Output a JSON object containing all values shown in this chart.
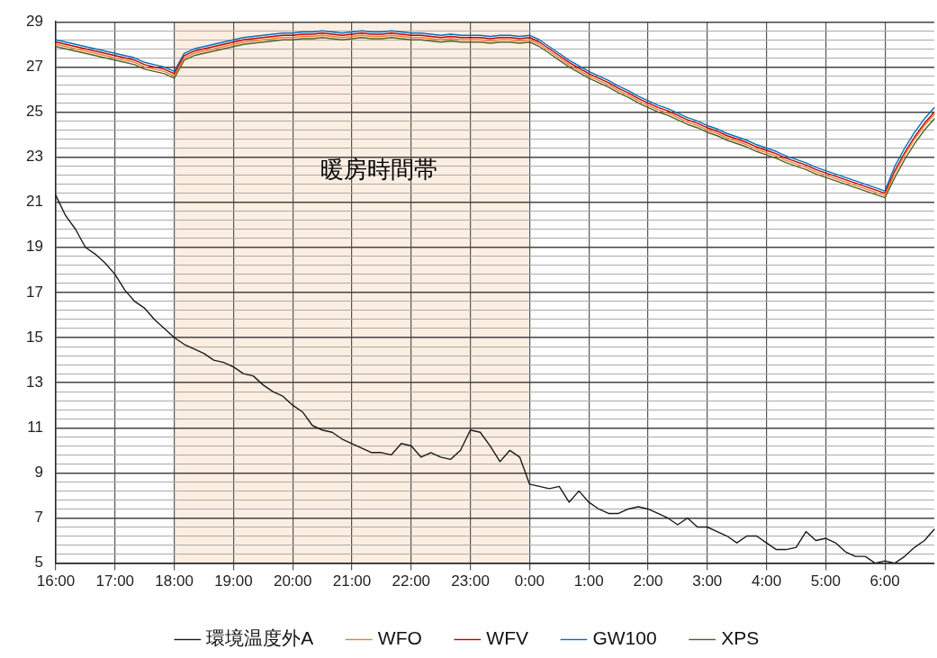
{
  "chart_data": {
    "type": "line",
    "categories": [
      "16:00",
      null,
      null,
      null,
      null,
      null,
      "17:00",
      null,
      null,
      null,
      null,
      null,
      "18:00",
      null,
      null,
      null,
      null,
      null,
      "19:00",
      null,
      null,
      null,
      null,
      null,
      "20:00",
      null,
      null,
      null,
      null,
      null,
      "21:00",
      null,
      null,
      null,
      null,
      null,
      "22:00",
      null,
      null,
      null,
      null,
      null,
      "23:00",
      null,
      null,
      null,
      null,
      null,
      "0:00",
      null,
      null,
      null,
      null,
      null,
      "1:00",
      null,
      null,
      null,
      null,
      null,
      "2:00",
      null,
      null,
      null,
      null,
      null,
      "3:00",
      null,
      null,
      null,
      null,
      null,
      "4:00",
      null,
      null,
      null,
      null,
      null,
      "5:00",
      null,
      null,
      null,
      null,
      null,
      "6:00",
      null,
      null,
      null,
      null,
      null
    ],
    "ylim": [
      5,
      29
    ],
    "yticks": [
      5,
      {
        "value": 5.4,
        "label": null
      },
      {
        "value": 5.8,
        "label": null
      },
      {
        "value": 6.2,
        "label": null
      },
      {
        "value": 6.6,
        "label": null
      },
      7,
      {
        "value": 7.4,
        "label": null
      },
      {
        "value": 7.8,
        "label": null
      },
      {
        "value": 8.2,
        "label": null
      },
      {
        "value": 8.6,
        "label": null
      },
      9,
      {
        "value": 9.4,
        "label": null
      },
      {
        "value": 9.8,
        "label": null
      },
      {
        "value": 10.2,
        "label": null
      },
      {
        "value": 10.6,
        "label": null
      },
      11,
      {
        "value": 11.4,
        "label": null
      },
      {
        "value": 11.8,
        "label": null
      },
      {
        "value": 12.2,
        "label": null
      },
      {
        "value": 12.6,
        "label": null
      },
      13,
      {
        "value": 13.4,
        "label": null
      },
      {
        "value": 13.8,
        "label": null
      },
      {
        "value": 14.2,
        "label": null
      },
      {
        "value": 14.6,
        "label": null
      },
      15,
      {
        "value": 15.4,
        "label": null
      },
      {
        "value": 15.8,
        "label": null
      },
      {
        "value": 16.2,
        "label": null
      },
      {
        "value": 16.6,
        "label": null
      },
      17,
      {
        "value": 17.4,
        "label": null
      },
      {
        "value": 17.8,
        "label": null
      },
      {
        "value": 18.2,
        "label": null
      },
      {
        "value": 18.6,
        "label": null
      },
      19,
      {
        "value": 19.4,
        "label": null
      },
      {
        "value": 19.8,
        "label": null
      },
      {
        "value": 20.2,
        "label": null
      },
      {
        "value": 20.6,
        "label": null
      },
      21,
      {
        "value": 21.4,
        "label": null
      },
      {
        "value": 21.8,
        "label": null
      },
      {
        "value": 22.2,
        "label": null
      },
      {
        "value": 22.6,
        "label": null
      },
      23,
      {
        "value": 23.4,
        "label": null
      },
      {
        "value": 23.8,
        "label": null
      },
      {
        "value": 24.2,
        "label": null
      },
      {
        "value": 24.6,
        "label": null
      },
      25,
      {
        "value": 25.4,
        "label": null
      },
      {
        "value": 25.8,
        "label": null
      },
      {
        "value": 26.2,
        "label": null
      },
      {
        "value": 26.6,
        "label": null
      },
      27,
      {
        "value": 27.4,
        "label": null
      },
      {
        "value": 27.8,
        "label": null
      },
      {
        "value": 28.2,
        "label": null
      },
      {
        "value": 28.6,
        "label": null
      },
      29
    ],
    "grid": true,
    "legend": "bottom",
    "marker": "none",
    "line_style": "solid",
    "bands": [
      {
        "axis": "x",
        "from": "18:00",
        "to": "0:00",
        "label": "暖房時間帯",
        "color": "#fdeee2"
      }
    ],
    "series": [
      {
        "name": "環境温度外A",
        "color": "#1a1a1a",
        "values": [
          21.3,
          20.4,
          19.8,
          19.0,
          18.7,
          18.3,
          17.8,
          17.1,
          16.6,
          16.3,
          15.8,
          15.4,
          15.0,
          14.7,
          14.5,
          14.3,
          14.0,
          13.9,
          13.7,
          13.4,
          13.3,
          12.9,
          12.6,
          12.4,
          12.0,
          11.7,
          11.1,
          10.9,
          10.8,
          10.5,
          10.3,
          10.1,
          9.9,
          9.9,
          9.8,
          10.3,
          10.2,
          9.7,
          9.9,
          9.7,
          9.6,
          10.0,
          10.9,
          10.8,
          10.2,
          9.5,
          10.0,
          9.7,
          8.5,
          8.4,
          8.3,
          8.4,
          7.7,
          8.2,
          7.7,
          7.4,
          7.2,
          7.2,
          7.4,
          7.5,
          7.4,
          7.2,
          7.0,
          6.7,
          7.0,
          6.6,
          6.6,
          6.4,
          6.2,
          5.9,
          6.2,
          6.2,
          5.9,
          5.6,
          5.6,
          5.7,
          6.4,
          6.0,
          6.1,
          5.9,
          5.5,
          5.3,
          5.3,
          5.0,
          5.1,
          5.0,
          5.3,
          5.7,
          6.0,
          6.5
        ]
      },
      {
        "name": "WFO",
        "color": "#ed7d31",
        "values": [
          28.0,
          27.9,
          27.8,
          27.7,
          27.6,
          27.5,
          27.4,
          27.3,
          27.2,
          27.0,
          26.9,
          26.8,
          26.6,
          27.4,
          27.6,
          27.7,
          27.8,
          27.9,
          28.0,
          28.1,
          28.15,
          28.2,
          28.25,
          28.3,
          28.3,
          28.35,
          28.35,
          28.4,
          28.35,
          28.3,
          28.35,
          28.4,
          28.35,
          28.35,
          28.4,
          28.35,
          28.3,
          28.3,
          28.25,
          28.2,
          28.25,
          28.2,
          28.2,
          28.2,
          28.15,
          28.2,
          28.2,
          28.15,
          28.2,
          28.0,
          27.7,
          27.4,
          27.1,
          26.85,
          26.6,
          26.4,
          26.2,
          25.95,
          25.75,
          25.5,
          25.3,
          25.1,
          24.95,
          24.75,
          24.55,
          24.4,
          24.2,
          24.05,
          23.85,
          23.7,
          23.55,
          23.35,
          23.2,
          23.05,
          22.85,
          22.7,
          22.55,
          22.35,
          22.2,
          22.05,
          21.9,
          21.75,
          21.6,
          21.45,
          21.3,
          22.3,
          23.1,
          23.8,
          24.4,
          24.9
        ]
      },
      {
        "name": "WFV",
        "color": "#c00000",
        "values": [
          28.1,
          28.0,
          27.9,
          27.8,
          27.7,
          27.6,
          27.5,
          27.4,
          27.3,
          27.1,
          27.0,
          26.9,
          26.7,
          27.5,
          27.7,
          27.8,
          27.9,
          28.0,
          28.1,
          28.2,
          28.25,
          28.3,
          28.35,
          28.4,
          28.4,
          28.45,
          28.45,
          28.5,
          28.45,
          28.4,
          28.45,
          28.5,
          28.45,
          28.45,
          28.5,
          28.45,
          28.4,
          28.4,
          28.35,
          28.3,
          28.35,
          28.3,
          28.3,
          28.3,
          28.25,
          28.3,
          28.3,
          28.25,
          28.3,
          28.1,
          27.8,
          27.5,
          27.2,
          26.95,
          26.7,
          26.5,
          26.3,
          26.05,
          25.85,
          25.6,
          25.4,
          25.2,
          25.05,
          24.85,
          24.65,
          24.5,
          24.3,
          24.15,
          23.95,
          23.8,
          23.65,
          23.45,
          23.3,
          23.15,
          22.95,
          22.8,
          22.65,
          22.45,
          22.3,
          22.15,
          22.0,
          21.85,
          21.7,
          21.55,
          21.4,
          22.4,
          23.2,
          23.9,
          24.5,
          25.0
        ]
      },
      {
        "name": "GW100",
        "color": "#0070c0",
        "values": [
          28.2,
          28.1,
          28.0,
          27.9,
          27.8,
          27.7,
          27.6,
          27.5,
          27.4,
          27.2,
          27.1,
          27.0,
          26.8,
          27.6,
          27.8,
          27.9,
          28.0,
          28.1,
          28.2,
          28.3,
          28.35,
          28.4,
          28.45,
          28.5,
          28.5,
          28.55,
          28.55,
          28.6,
          28.55,
          28.5,
          28.55,
          28.6,
          28.55,
          28.55,
          28.6,
          28.55,
          28.5,
          28.5,
          28.45,
          28.4,
          28.45,
          28.4,
          28.4,
          28.4,
          28.35,
          28.4,
          28.4,
          28.35,
          28.4,
          28.2,
          27.9,
          27.6,
          27.3,
          27.05,
          26.8,
          26.6,
          26.4,
          26.15,
          25.95,
          25.7,
          25.5,
          25.3,
          25.15,
          24.95,
          24.75,
          24.6,
          24.4,
          24.25,
          24.05,
          23.9,
          23.75,
          23.55,
          23.4,
          23.25,
          23.05,
          22.9,
          22.75,
          22.55,
          22.4,
          22.25,
          22.1,
          21.95,
          21.8,
          21.65,
          21.5,
          22.6,
          23.4,
          24.1,
          24.7,
          25.2
        ]
      },
      {
        "name": "XPS",
        "color": "#4f6228",
        "values": [
          27.9,
          27.8,
          27.7,
          27.6,
          27.5,
          27.4,
          27.3,
          27.2,
          27.1,
          26.9,
          26.8,
          26.7,
          26.5,
          27.3,
          27.5,
          27.6,
          27.7,
          27.8,
          27.9,
          28.0,
          28.05,
          28.1,
          28.15,
          28.2,
          28.2,
          28.25,
          28.25,
          28.3,
          28.25,
          28.2,
          28.25,
          28.3,
          28.25,
          28.25,
          28.3,
          28.25,
          28.2,
          28.2,
          28.15,
          28.1,
          28.15,
          28.1,
          28.1,
          28.1,
          28.05,
          28.1,
          28.1,
          28.05,
          28.1,
          27.9,
          27.6,
          27.3,
          27.0,
          26.75,
          26.5,
          26.3,
          26.1,
          25.85,
          25.65,
          25.4,
          25.2,
          25.0,
          24.85,
          24.65,
          24.45,
          24.3,
          24.1,
          23.95,
          23.75,
          23.6,
          23.45,
          23.25,
          23.1,
          22.95,
          22.75,
          22.6,
          22.45,
          22.25,
          22.1,
          21.95,
          21.8,
          21.65,
          21.5,
          21.35,
          21.2,
          22.1,
          22.9,
          23.6,
          24.2,
          24.7
        ]
      }
    ]
  }
}
